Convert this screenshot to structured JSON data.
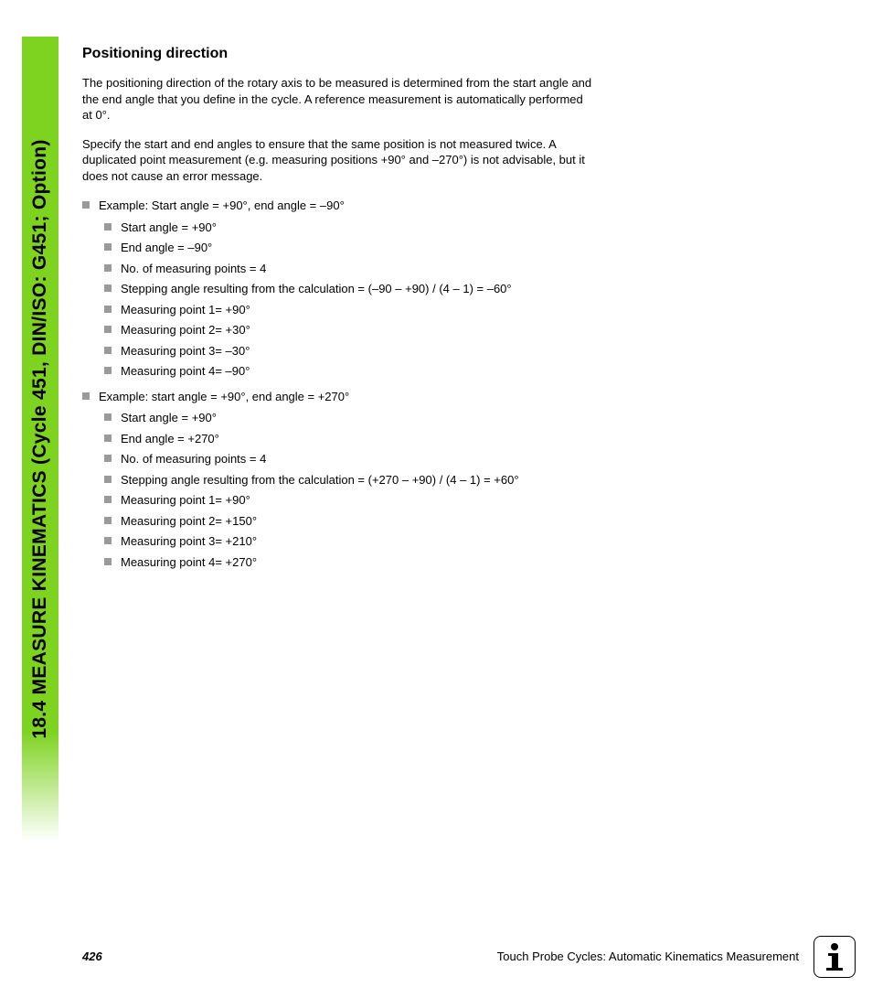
{
  "sidebar": {
    "title": "18.4 MEASURE KINEMATICS (Cycle 451, DIN/ISO: G451; Option)",
    "color": "#7ed321"
  },
  "section": {
    "heading": "Positioning direction",
    "para1": "The positioning direction of the rotary axis to be measured is determined from the start angle and the end angle that you define in the cycle. A reference measurement is automatically performed at 0°.",
    "para2": "Specify the start and end angles to ensure that the same position is not measured twice. A duplicated point measurement (e.g. measuring positions +90° and –270°) is not advisable, but it does not cause an error message."
  },
  "example1": {
    "title": "Example: Start angle = +90°, end angle = –90°",
    "items": [
      "Start angle = +90°",
      "End angle = –90°",
      "No. of measuring points = 4",
      "Stepping angle resulting from the calculation = (–90 – +90) / (4 – 1) = –60°",
      "Measuring point 1= +90°",
      "Measuring point 2= +30°",
      "Measuring point 3= –30°",
      "Measuring point 4= –90°"
    ]
  },
  "example2": {
    "title": "Example: start angle = +90°, end angle = +270°",
    "items": [
      "Start angle = +90°",
      "End angle = +270°",
      "No. of measuring points = 4",
      "Stepping angle resulting from the calculation = (+270 – +90) / (4 – 1) = +60°",
      "Measuring point 1= +90°",
      "Measuring point 2= +150°",
      "Measuring point 3= +210°",
      "Measuring point 4= +270°"
    ]
  },
  "footer": {
    "page": "426",
    "text": "Touch Probe Cycles: Automatic Kinematics Measurement"
  }
}
